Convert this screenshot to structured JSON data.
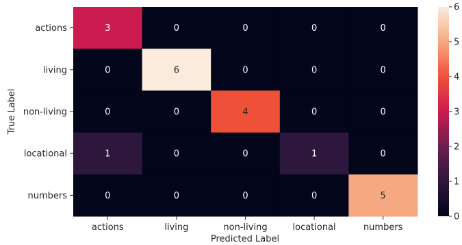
{
  "chart_data": {
    "type": "heatmap",
    "xlabel": "Predicted Label",
    "ylabel": "True Label",
    "x_categories": [
      "actions",
      "living",
      "non-living",
      "locational",
      "numbers"
    ],
    "y_categories": [
      "actions",
      "living",
      "non-living",
      "locational",
      "numbers"
    ],
    "values": [
      [
        3,
        0,
        0,
        0,
        0
      ],
      [
        0,
        6,
        0,
        0,
        0
      ],
      [
        0,
        0,
        4,
        0,
        0
      ],
      [
        1,
        0,
        0,
        1,
        0
      ],
      [
        0,
        0,
        0,
        0,
        5
      ]
    ],
    "colorbar": {
      "min": 0,
      "max": 6,
      "ticks": [
        "0",
        "1",
        "2",
        "3",
        "4",
        "5",
        "6"
      ]
    },
    "colormap": "rocket",
    "colors": {
      "low": "#03051a",
      "high": "#faebdd",
      "text_dark": "#262626",
      "text_light": "#ffffff"
    }
  }
}
